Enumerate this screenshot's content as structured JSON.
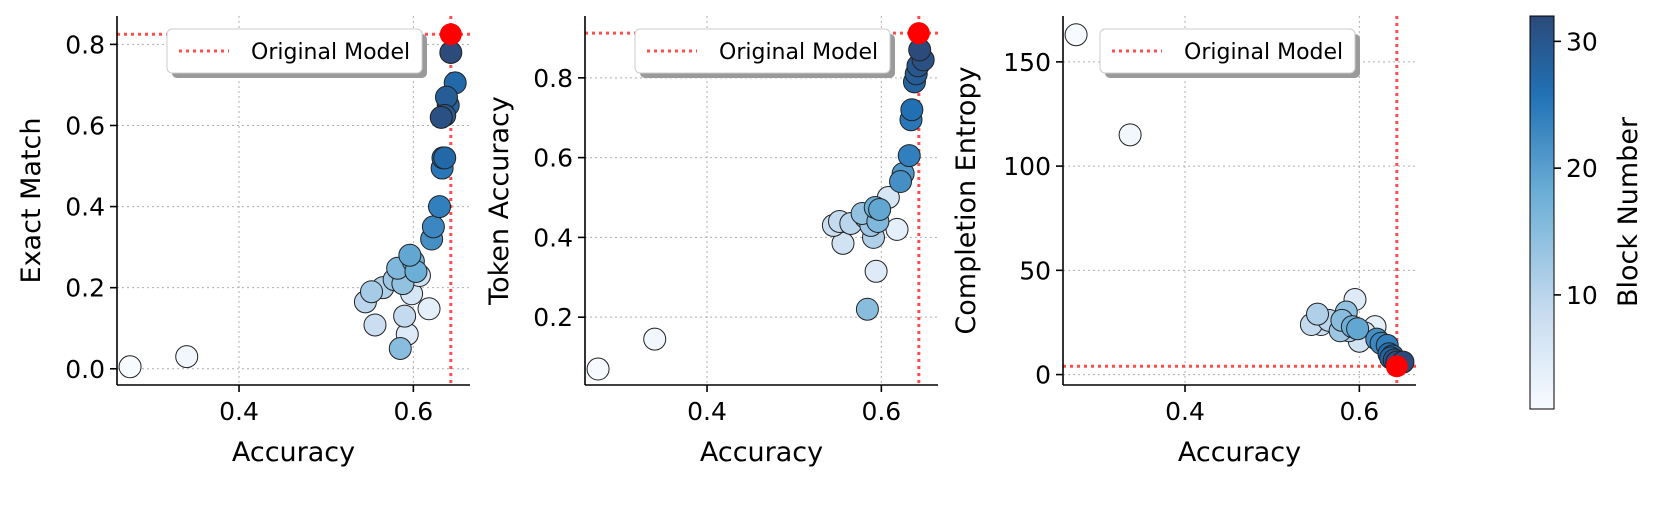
{
  "chart_data": [
    {
      "type": "scatter",
      "xlabel": "Accuracy",
      "ylabel": "Exact Match",
      "xlim": [
        0.26,
        0.665
      ],
      "ylim": [
        -0.04,
        0.87
      ],
      "xticks": [
        0.4,
        0.6
      ],
      "xtick_labels": [
        "0.4",
        "0.6"
      ],
      "yticks": [
        0.0,
        0.2,
        0.4,
        0.6,
        0.8
      ],
      "ytick_labels": [
        "0.0",
        "0.2",
        "0.4",
        "0.6",
        "0.8"
      ],
      "grid": true,
      "legend": {
        "label": "Original Model",
        "placement": "top-right"
      },
      "reference": {
        "x": 0.643,
        "y": 0.825
      },
      "points": [
        {
          "x": 0.275,
          "y": 0.005,
          "block": 1
        },
        {
          "x": 0.34,
          "y": 0.03,
          "block": 2
        },
        {
          "x": 0.545,
          "y": 0.165,
          "block": 10
        },
        {
          "x": 0.552,
          "y": 0.19,
          "block": 12
        },
        {
          "x": 0.556,
          "y": 0.108,
          "block": 8
        },
        {
          "x": 0.565,
          "y": 0.2,
          "block": 11
        },
        {
          "x": 0.578,
          "y": 0.22,
          "block": 13
        },
        {
          "x": 0.582,
          "y": 0.248,
          "block": 16
        },
        {
          "x": 0.585,
          "y": 0.05,
          "block": 15
        },
        {
          "x": 0.588,
          "y": 0.21,
          "block": 14
        },
        {
          "x": 0.59,
          "y": 0.13,
          "block": 9
        },
        {
          "x": 0.593,
          "y": 0.085,
          "block": 5
        },
        {
          "x": 0.596,
          "y": 0.28,
          "block": 19
        },
        {
          "x": 0.598,
          "y": 0.185,
          "block": 6
        },
        {
          "x": 0.6,
          "y": 0.265,
          "block": 17
        },
        {
          "x": 0.603,
          "y": 0.24,
          "block": 18
        },
        {
          "x": 0.607,
          "y": 0.23,
          "block": 7
        },
        {
          "x": 0.618,
          "y": 0.148,
          "block": 4
        },
        {
          "x": 0.621,
          "y": 0.32,
          "block": 22
        },
        {
          "x": 0.623,
          "y": 0.35,
          "block": 23
        },
        {
          "x": 0.63,
          "y": 0.4,
          "block": 24
        },
        {
          "x": 0.633,
          "y": 0.495,
          "block": 25
        },
        {
          "x": 0.634,
          "y": 0.52,
          "block": 26
        },
        {
          "x": 0.636,
          "y": 0.52,
          "block": 27
        },
        {
          "x": 0.632,
          "y": 0.62,
          "block": 31
        },
        {
          "x": 0.636,
          "y": 0.625,
          "block": 30
        },
        {
          "x": 0.64,
          "y": 0.65,
          "block": 28
        },
        {
          "x": 0.638,
          "y": 0.67,
          "block": 29
        },
        {
          "x": 0.648,
          "y": 0.705,
          "block": 27
        },
        {
          "x": 0.643,
          "y": 0.78,
          "block": 32
        }
      ]
    },
    {
      "type": "scatter",
      "xlabel": "Accuracy",
      "ylabel": "Token Accuracy",
      "xlim": [
        0.26,
        0.665
      ],
      "ylim": [
        0.03,
        0.955
      ],
      "xticks": [
        0.4,
        0.6
      ],
      "xtick_labels": [
        "0.4",
        "0.6"
      ],
      "yticks": [
        0.2,
        0.4,
        0.6,
        0.8
      ],
      "ytick_labels": [
        "0.2",
        "0.4",
        "0.6",
        "0.8"
      ],
      "grid": true,
      "legend": {
        "label": "Original Model",
        "placement": "top-right"
      },
      "reference": {
        "x": 0.643,
        "y": 0.912
      },
      "points": [
        {
          "x": 0.275,
          "y": 0.07,
          "block": 1
        },
        {
          "x": 0.34,
          "y": 0.145,
          "block": 2
        },
        {
          "x": 0.545,
          "y": 0.43,
          "block": 8
        },
        {
          "x": 0.552,
          "y": 0.44,
          "block": 9
        },
        {
          "x": 0.556,
          "y": 0.385,
          "block": 7
        },
        {
          "x": 0.565,
          "y": 0.435,
          "block": 10
        },
        {
          "x": 0.578,
          "y": 0.46,
          "block": 14
        },
        {
          "x": 0.582,
          "y": 0.45,
          "block": 12
        },
        {
          "x": 0.584,
          "y": 0.22,
          "block": 15
        },
        {
          "x": 0.588,
          "y": 0.43,
          "block": 13
        },
        {
          "x": 0.591,
          "y": 0.4,
          "block": 11
        },
        {
          "x": 0.593,
          "y": 0.475,
          "block": 18
        },
        {
          "x": 0.596,
          "y": 0.44,
          "block": 16
        },
        {
          "x": 0.598,
          "y": 0.47,
          "block": 19
        },
        {
          "x": 0.594,
          "y": 0.315,
          "block": 5
        },
        {
          "x": 0.608,
          "y": 0.5,
          "block": 6
        },
        {
          "x": 0.618,
          "y": 0.42,
          "block": 4
        },
        {
          "x": 0.622,
          "y": 0.54,
          "block": 22
        },
        {
          "x": 0.625,
          "y": 0.56,
          "block": 21
        },
        {
          "x": 0.632,
          "y": 0.605,
          "block": 24
        },
        {
          "x": 0.634,
          "y": 0.695,
          "block": 25
        },
        {
          "x": 0.635,
          "y": 0.72,
          "block": 26
        },
        {
          "x": 0.638,
          "y": 0.79,
          "block": 28
        },
        {
          "x": 0.64,
          "y": 0.81,
          "block": 29
        },
        {
          "x": 0.642,
          "y": 0.83,
          "block": 30
        },
        {
          "x": 0.648,
          "y": 0.845,
          "block": 31
        },
        {
          "x": 0.644,
          "y": 0.87,
          "block": 32
        }
      ]
    },
    {
      "type": "scatter",
      "xlabel": "Accuracy",
      "ylabel": "Completion Entropy",
      "xlim": [
        0.26,
        0.665
      ],
      "ylim": [
        -5,
        172
      ],
      "xticks": [
        0.4,
        0.6
      ],
      "xtick_labels": [
        "0.4",
        "0.6"
      ],
      "yticks": [
        0,
        50,
        100,
        150
      ],
      "ytick_labels": [
        "0",
        "50",
        "100",
        "150"
      ],
      "grid": true,
      "legend": {
        "label": "Original Model",
        "placement": "top-left"
      },
      "reference": {
        "x": 0.643,
        "y": 4
      },
      "points": [
        {
          "x": 0.275,
          "y": 163,
          "block": 1
        },
        {
          "x": 0.337,
          "y": 115,
          "block": 2
        },
        {
          "x": 0.545,
          "y": 24,
          "block": 9
        },
        {
          "x": 0.552,
          "y": 29,
          "block": 11
        },
        {
          "x": 0.556,
          "y": 24,
          "block": 8
        },
        {
          "x": 0.565,
          "y": 26,
          "block": 10
        },
        {
          "x": 0.578,
          "y": 21,
          "block": 13
        },
        {
          "x": 0.58,
          "y": 26,
          "block": 15
        },
        {
          "x": 0.585,
          "y": 30,
          "block": 14
        },
        {
          "x": 0.588,
          "y": 21,
          "block": 12
        },
        {
          "x": 0.592,
          "y": 23,
          "block": 18
        },
        {
          "x": 0.595,
          "y": 36,
          "block": 5
        },
        {
          "x": 0.598,
          "y": 22,
          "block": 19
        },
        {
          "x": 0.6,
          "y": 16,
          "block": 7
        },
        {
          "x": 0.606,
          "y": 20,
          "block": 6
        },
        {
          "x": 0.618,
          "y": 23,
          "block": 4
        },
        {
          "x": 0.62,
          "y": 17,
          "block": 22
        },
        {
          "x": 0.625,
          "y": 15,
          "block": 23
        },
        {
          "x": 0.632,
          "y": 14,
          "block": 24
        },
        {
          "x": 0.634,
          "y": 10,
          "block": 26
        },
        {
          "x": 0.636,
          "y": 8,
          "block": 28
        },
        {
          "x": 0.638,
          "y": 9,
          "block": 27
        },
        {
          "x": 0.64,
          "y": 7,
          "block": 30
        },
        {
          "x": 0.643,
          "y": 6,
          "block": 31
        },
        {
          "x": 0.65,
          "y": 6,
          "block": 32
        }
      ]
    }
  ],
  "colorbar": {
    "label": "Block Number",
    "min": 1,
    "max": 32,
    "ticks": [
      10,
      20,
      30
    ],
    "tick_labels": [
      "10",
      "20",
      "30"
    ],
    "colors": [
      "#f7fbff",
      "#c6dbef",
      "#6baed6",
      "#2171b5",
      "#2c4a7a"
    ]
  },
  "colors": {
    "reference_point": "#ff0000",
    "reference_line": "#ff4d4d",
    "grid": "#b0b0b0"
  }
}
